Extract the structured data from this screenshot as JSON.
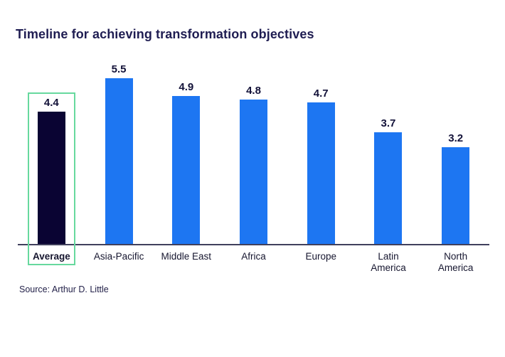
{
  "page": {
    "title": "Timeline for achieving transformation objectives",
    "source": "Source: Arthur D. Little"
  },
  "chart_data": {
    "type": "bar",
    "title": "Timeline for achieving transformation objectives",
    "categories": [
      "Average",
      "Asia-Pacific",
      "Middle East",
      "Africa",
      "Europe",
      "Latin America",
      "North America"
    ],
    "values": [
      4.4,
      5.5,
      4.9,
      4.8,
      4.7,
      3.7,
      3.2
    ],
    "label_lines": [
      [
        "Average"
      ],
      [
        "Asia-Pacific"
      ],
      [
        "Middle East"
      ],
      [
        "Africa"
      ],
      [
        "Europe"
      ],
      [
        "Latin",
        "America"
      ],
      [
        "North",
        "America"
      ]
    ],
    "value_labels": true,
    "grid": false,
    "legend": false,
    "xlabel": "",
    "ylabel": "",
    "ylim": [
      0,
      5.5
    ],
    "highlight_index": 0,
    "colors": {
      "bar": "#1d76f2",
      "highlight_bar": "#0a0433",
      "highlight_box": "#67d99e",
      "axis": "#40405c",
      "title_text": "#1f1d52",
      "value_text": "#131239",
      "category_text": "#16162f"
    },
    "source": "Source: Arthur D. Little"
  }
}
